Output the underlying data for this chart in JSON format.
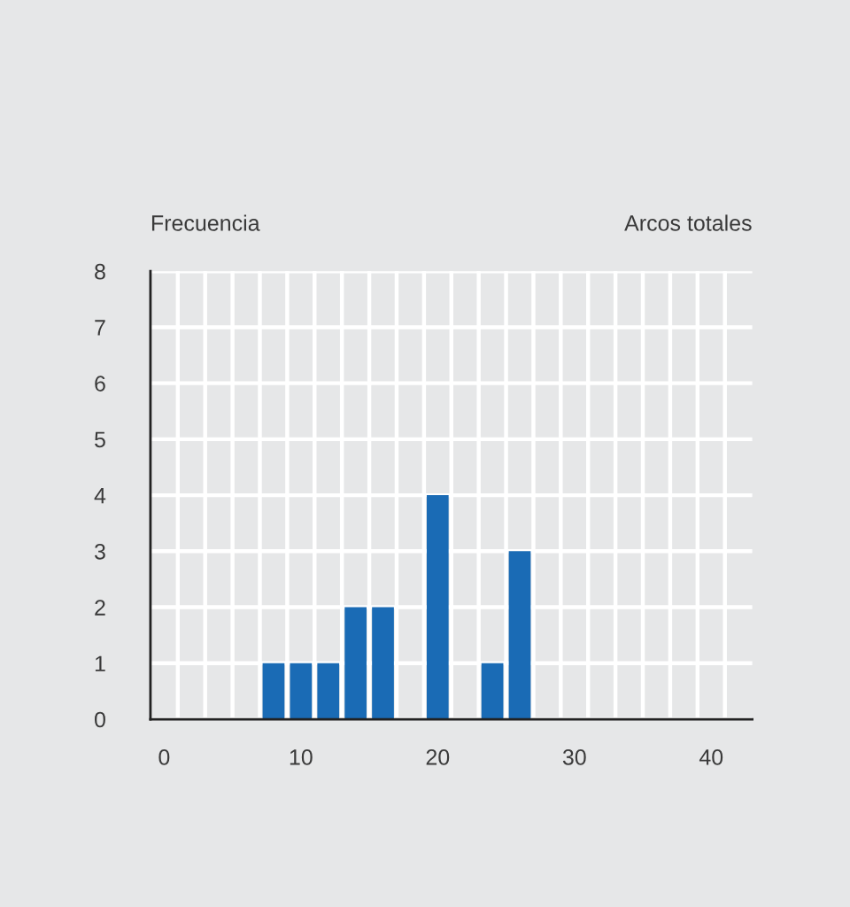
{
  "chart_data": {
    "type": "bar",
    "xlabel": "Arcos totales",
    "ylabel": "Frecuencia",
    "x": [
      8,
      10,
      12,
      14,
      16,
      20,
      24,
      26
    ],
    "values": [
      1,
      1,
      1,
      2,
      2,
      4,
      1,
      3
    ],
    "color": "#1a6bb5",
    "xlim": [
      -1,
      43
    ],
    "ylim": [
      0,
      8
    ],
    "xticks": [
      0,
      10,
      20,
      30,
      40,
      {
        "value": 1,
        "label": null
      },
      {
        "value": 3,
        "label": null
      },
      {
        "value": 5,
        "label": null
      },
      {
        "value": 7,
        "label": null
      },
      {
        "value": 9,
        "label": null
      },
      {
        "value": 11,
        "label": null
      },
      {
        "value": 13,
        "label": null
      },
      {
        "value": 15,
        "label": null
      },
      {
        "value": 17,
        "label": null
      },
      {
        "value": 19,
        "label": null
      },
      {
        "value": 21,
        "label": null
      },
      {
        "value": 23,
        "label": null
      },
      {
        "value": 25,
        "label": null
      },
      {
        "value": 27,
        "label": null
      },
      {
        "value": 29,
        "label": null
      },
      {
        "value": 31,
        "label": null
      },
      {
        "value": 33,
        "label": null
      },
      {
        "value": 35,
        "label": null
      },
      {
        "value": 37,
        "label": null
      },
      {
        "value": 39,
        "label": null
      },
      {
        "value": 41,
        "label": null
      }
    ],
    "yticks": [
      0,
      1,
      2,
      3,
      4,
      5,
      6,
      7,
      8
    ],
    "grid": true
  }
}
